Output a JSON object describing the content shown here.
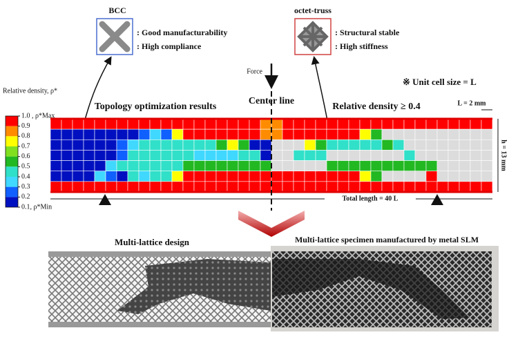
{
  "bcc": {
    "title": "BCC",
    "notes": [
      ": Good manufacturability",
      ": High compliance"
    ]
  },
  "octet": {
    "title": "octet-truss",
    "notes": [
      ": Structural stable",
      ": High stiffness"
    ]
  },
  "force": "Force",
  "unit_note": "※ Unit cell size = L",
  "colorbar": {
    "title": "Relative density, ρ*",
    "ticks": [
      {
        "value": 1.0,
        "label": "1.0 , ρ*Max"
      },
      0.9,
      0.8,
      0.7,
      0.6,
      0.5,
      0.4,
      0.3,
      0.2,
      {
        "value": 0.1,
        "label": "0.1, ρ*Min"
      }
    ],
    "colors": [
      "#ff0000",
      "#ff8c00",
      "#ffff00",
      "#80e020",
      "#22b822",
      "#30e0c8",
      "#40d8ff",
      "#1060ff",
      "#0010c0"
    ]
  },
  "map": {
    "left_title": "Topology optimization results",
    "center": "Center line",
    "right_title": "Relative density ≥ 0.4",
    "cell_size": "L = 2 mm",
    "height": "h = 13 mm",
    "length": "Total length = 40 L",
    "null_color": "#dcdcdc",
    "grid": [
      [
        0.9,
        0.9,
        0.9,
        0.9,
        0.9,
        0.9,
        0.9,
        0.9,
        0.9,
        0.9,
        0.9,
        0.9,
        0.9,
        0.9,
        0.9,
        0.9,
        0.9,
        0.9,
        0.9,
        0.8,
        0.8,
        0.9,
        0.9,
        0.9,
        0.9,
        0.9,
        0.9,
        0.9,
        0.9,
        0.9,
        0.9,
        0.9,
        0.9,
        0.9,
        0.9,
        0.9,
        0.9,
        0.9,
        0.9,
        0.9
      ],
      [
        0.1,
        0.1,
        0.1,
        0.1,
        0.1,
        0.1,
        0.1,
        0.1,
        0.2,
        0.3,
        0.2,
        0.7,
        0.9,
        0.9,
        0.9,
        0.9,
        0.9,
        0.9,
        0.9,
        0.8,
        0.8,
        0.9,
        0.9,
        0.9,
        0.9,
        0.9,
        0.9,
        0.9,
        0.7,
        0.5,
        null,
        null,
        null,
        null,
        null,
        null,
        null,
        null,
        null,
        null
      ],
      [
        0.1,
        0.1,
        0.1,
        0.1,
        0.1,
        0.1,
        0.2,
        0.3,
        0.4,
        0.4,
        0.4,
        0.4,
        0.4,
        0.4,
        0.4,
        0.5,
        0.7,
        0.5,
        0.1,
        0.1,
        null,
        null,
        null,
        0.7,
        0.5,
        0.4,
        0.4,
        0.4,
        0.4,
        0.4,
        0.5,
        0.4,
        null,
        null,
        null,
        null,
        null,
        null,
        null,
        null
      ],
      [
        0.1,
        0.1,
        0.1,
        0.1,
        0.1,
        0.1,
        0.2,
        0.4,
        0.4,
        0.4,
        0.4,
        0.4,
        0.4,
        0.3,
        0.3,
        0.3,
        0.3,
        0.4,
        0.4,
        0.1,
        null,
        null,
        0.4,
        0.4,
        0.4,
        null,
        null,
        null,
        null,
        null,
        null,
        null,
        0.4,
        null,
        null,
        null,
        null,
        null,
        null,
        null
      ],
      [
        0.1,
        0.1,
        0.1,
        0.1,
        0.1,
        0.3,
        0.4,
        0.4,
        0.4,
        0.4,
        0.4,
        0.4,
        0.5,
        0.5,
        0.5,
        0.5,
        0.5,
        0.5,
        0.5,
        0.5,
        null,
        null,
        null,
        null,
        null,
        0.5,
        0.5,
        0.5,
        0.5,
        0.5,
        0.5,
        0.5,
        0.5,
        0.5,
        0.5,
        null,
        null,
        null,
        null,
        null
      ],
      [
        0.1,
        0.1,
        0.1,
        0.1,
        0.3,
        0.2,
        0.1,
        0.4,
        0.3,
        0.4,
        0.4,
        0.7,
        0.9,
        0.9,
        0.9,
        0.9,
        0.9,
        0.9,
        0.9,
        0.9,
        0.9,
        0.9,
        0.9,
        0.9,
        0.9,
        0.9,
        0.9,
        0.9,
        0.7,
        0.5,
        null,
        null,
        null,
        null,
        0.9,
        null,
        null,
        null,
        null,
        null
      ],
      [
        0.9,
        0.9,
        0.9,
        0.9,
        0.9,
        0.9,
        0.9,
        0.9,
        0.9,
        0.9,
        0.9,
        0.9,
        0.9,
        0.9,
        0.9,
        0.9,
        0.9,
        0.9,
        0.9,
        0.9,
        0.9,
        0.9,
        0.9,
        0.9,
        0.9,
        0.9,
        0.9,
        0.9,
        0.9,
        0.9,
        0.9,
        0.9,
        0.9,
        0.9,
        0.9,
        0.9,
        0.9,
        0.9,
        0.9,
        0.9
      ]
    ]
  },
  "photos": {
    "left": "Multi-lattice design",
    "right": "Multi-lattice specimen manufactured by metal SLM"
  }
}
